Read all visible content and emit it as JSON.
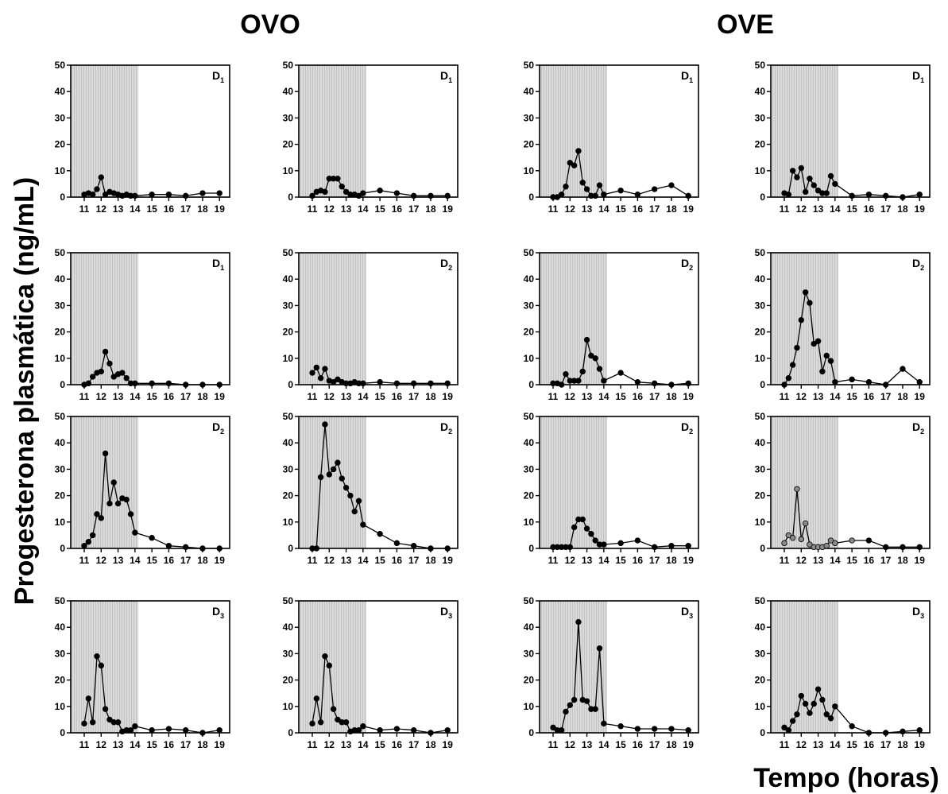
{
  "group_titles": [
    "OVO",
    "OVE"
  ],
  "ylabel": "Progesterona  plasmática (ng/mL)",
  "xlabel": "Tempo (horas)",
  "colors": {
    "shade": "#d4d4d4",
    "line": "#000000",
    "marker": "#000000",
    "marker_alt": "#8a8a8a"
  },
  "chart_data": [
    {
      "type": "line",
      "group": "OVO",
      "label_letter": "D",
      "label_sub": "1",
      "xlim": [
        10.2,
        19.6
      ],
      "ylim": [
        0,
        50
      ],
      "shaded_x": [
        10.2,
        14.2
      ],
      "xticks": [
        11,
        12,
        13,
        14,
        15,
        16,
        17,
        18,
        19
      ],
      "yticks": [
        0,
        10,
        20,
        30,
        40,
        50
      ],
      "x": [
        11,
        11.25,
        11.5,
        11.75,
        12,
        12.25,
        12.5,
        12.75,
        13,
        13.25,
        13.5,
        13.75,
        14,
        15,
        16,
        17,
        18,
        19
      ],
      "y": [
        1,
        1.5,
        1,
        3,
        7.5,
        1,
        2,
        1.5,
        1,
        0.5,
        1,
        0.5,
        0.5,
        1,
        1,
        0.5,
        1.5,
        1.5
      ]
    },
    {
      "type": "line",
      "group": "OVO",
      "label_letter": "D",
      "label_sub": "1",
      "xlim": [
        10.2,
        19.6
      ],
      "ylim": [
        0,
        50
      ],
      "shaded_x": [
        10.2,
        14.2
      ],
      "xticks": [
        11,
        12,
        13,
        14,
        15,
        16,
        17,
        18,
        19
      ],
      "yticks": [
        0,
        10,
        20,
        30,
        40,
        50
      ],
      "x": [
        11,
        11.25,
        11.5,
        11.75,
        12,
        12.25,
        12.5,
        12.75,
        13,
        13.25,
        13.5,
        13.75,
        14,
        15,
        16,
        17,
        18,
        19
      ],
      "y": [
        0.5,
        2,
        2.5,
        2,
        7,
        7,
        7,
        4,
        2,
        1,
        1,
        0.5,
        1.5,
        2.5,
        1.5,
        0.5,
        0.5,
        0.5
      ]
    },
    {
      "type": "line",
      "group": "OVE",
      "label_letter": "D",
      "label_sub": "1",
      "xlim": [
        10.2,
        19.6
      ],
      "ylim": [
        0,
        50
      ],
      "shaded_x": [
        10.2,
        14.2
      ],
      "xticks": [
        11,
        12,
        13,
        14,
        15,
        16,
        17,
        18,
        19
      ],
      "yticks": [
        0,
        10,
        20,
        30,
        40,
        50
      ],
      "x": [
        11,
        11.25,
        11.5,
        11.75,
        12,
        12.25,
        12.5,
        12.75,
        13,
        13.25,
        13.5,
        13.75,
        14,
        15,
        16,
        17,
        18,
        19
      ],
      "y": [
        0,
        0,
        1,
        4,
        13,
        12,
        17.5,
        5.5,
        3,
        0.5,
        0.5,
        4.5,
        1,
        2.5,
        1,
        3,
        4.5,
        0.5
      ]
    },
    {
      "type": "line",
      "group": "OVE",
      "label_letter": "D",
      "label_sub": "1",
      "xlim": [
        10.2,
        19.6
      ],
      "ylim": [
        0,
        50
      ],
      "shaded_x": [
        10.2,
        14.2
      ],
      "xticks": [
        11,
        12,
        13,
        14,
        15,
        16,
        17,
        18,
        19
      ],
      "yticks": [
        0,
        10,
        20,
        30,
        40,
        50
      ],
      "x": [
        11,
        11.25,
        11.5,
        11.75,
        12,
        12.25,
        12.5,
        12.75,
        13,
        13.25,
        13.5,
        13.75,
        14,
        15,
        16,
        17,
        18,
        19
      ],
      "y": [
        1.5,
        1,
        10,
        7.5,
        11,
        2,
        7,
        4.5,
        2.5,
        1.5,
        1.5,
        8,
        5,
        0.5,
        1,
        0.5,
        0,
        1
      ]
    },
    {
      "type": "line",
      "group": "OVO",
      "label_letter": "D",
      "label_sub": "1",
      "xlim": [
        10.2,
        19.6
      ],
      "ylim": [
        0,
        50
      ],
      "shaded_x": [
        10.2,
        14.2
      ],
      "xticks": [
        11,
        12,
        13,
        14,
        15,
        16,
        17,
        18,
        19
      ],
      "yticks": [
        0,
        10,
        20,
        30,
        40,
        50
      ],
      "x": [
        11,
        11.25,
        11.5,
        11.75,
        12,
        12.25,
        12.5,
        12.75,
        13,
        13.25,
        13.5,
        13.75,
        14,
        15,
        16,
        17,
        18,
        19
      ],
      "y": [
        0,
        0.5,
        3,
        4.5,
        5,
        12.5,
        8,
        3,
        4,
        4.5,
        2.5,
        0.5,
        0.5,
        0.5,
        0.5,
        0,
        0,
        0
      ]
    },
    {
      "type": "line",
      "group": "OVO",
      "label_letter": "D",
      "label_sub": "2",
      "xlim": [
        10.2,
        19.6
      ],
      "ylim": [
        0,
        50
      ],
      "shaded_x": [
        10.2,
        14.2
      ],
      "xticks": [
        11,
        12,
        13,
        14,
        15,
        16,
        17,
        18,
        19
      ],
      "yticks": [
        0,
        10,
        20,
        30,
        40,
        50
      ],
      "x": [
        11,
        11.25,
        11.5,
        11.75,
        12,
        12.25,
        12.5,
        12.75,
        13,
        13.25,
        13.5,
        13.75,
        14,
        15,
        16,
        17,
        18,
        19
      ],
      "y": [
        4.5,
        6.5,
        2.5,
        6,
        1.5,
        1,
        2,
        1,
        0.5,
        0.5,
        1,
        0.5,
        0.5,
        1,
        0.5,
        0.5,
        0.5,
        0.5
      ]
    },
    {
      "type": "line",
      "group": "OVE",
      "label_letter": "D",
      "label_sub": "2",
      "xlim": [
        10.2,
        19.6
      ],
      "ylim": [
        0,
        50
      ],
      "shaded_x": [
        10.2,
        14.2
      ],
      "xticks": [
        11,
        12,
        13,
        14,
        15,
        16,
        17,
        18,
        19
      ],
      "yticks": [
        0,
        10,
        20,
        30,
        40,
        50
      ],
      "x": [
        11,
        11.25,
        11.5,
        11.75,
        12,
        12.25,
        12.5,
        12.75,
        13,
        13.25,
        13.5,
        13.75,
        14,
        15,
        16,
        17,
        18,
        19
      ],
      "y": [
        0.5,
        0.5,
        0,
        4,
        1.5,
        1.5,
        1.5,
        5,
        17,
        11,
        10,
        6,
        1.5,
        4.5,
        1,
        0.5,
        0,
        0.5
      ]
    },
    {
      "type": "line",
      "group": "OVE",
      "label_letter": "D",
      "label_sub": "2",
      "xlim": [
        10.2,
        19.6
      ],
      "ylim": [
        0,
        50
      ],
      "shaded_x": [
        10.2,
        14.2
      ],
      "xticks": [
        11,
        12,
        13,
        14,
        15,
        16,
        17,
        18,
        19
      ],
      "yticks": [
        0,
        10,
        20,
        30,
        40,
        50
      ],
      "x": [
        11,
        11.25,
        11.5,
        11.75,
        12,
        12.25,
        12.5,
        12.75,
        13,
        13.25,
        13.5,
        13.75,
        14,
        15,
        16,
        17,
        18,
        19
      ],
      "y": [
        0,
        2.5,
        7.5,
        14,
        24.5,
        35,
        31,
        15.5,
        16.5,
        5,
        11,
        9,
        1,
        2,
        1,
        0,
        6,
        1
      ]
    },
    {
      "type": "line",
      "group": "OVO",
      "label_letter": "D",
      "label_sub": "2",
      "xlim": [
        10.2,
        19.6
      ],
      "ylim": [
        0,
        50
      ],
      "shaded_x": [
        10.2,
        14.2
      ],
      "xticks": [
        11,
        12,
        13,
        14,
        15,
        16,
        17,
        18,
        19
      ],
      "yticks": [
        0,
        10,
        20,
        30,
        40,
        50
      ],
      "x": [
        11,
        11.25,
        11.5,
        11.75,
        12,
        12.25,
        12.5,
        12.75,
        13,
        13.25,
        13.5,
        13.75,
        14,
        15,
        16,
        17,
        18,
        19
      ],
      "y": [
        1,
        2.5,
        5,
        13,
        11.5,
        36,
        17,
        25,
        17,
        19,
        18.5,
        13,
        6,
        4,
        1,
        0.5,
        0,
        0
      ]
    },
    {
      "type": "line",
      "group": "OVO",
      "label_letter": "D",
      "label_sub": "2",
      "xlim": [
        10.2,
        19.6
      ],
      "ylim": [
        0,
        50
      ],
      "shaded_x": [
        10.2,
        14.2
      ],
      "xticks": [
        11,
        12,
        13,
        14,
        15,
        16,
        17,
        18,
        19
      ],
      "yticks": [
        0,
        10,
        20,
        30,
        40,
        50
      ],
      "x": [
        11,
        11.25,
        11.5,
        11.75,
        12,
        12.25,
        12.5,
        12.75,
        13,
        13.25,
        13.5,
        13.75,
        14,
        15,
        16,
        17,
        18,
        19
      ],
      "y": [
        0,
        0,
        27,
        47,
        28,
        30,
        32.5,
        26.5,
        23,
        20,
        14,
        18,
        9,
        5.5,
        2,
        1,
        0,
        0
      ]
    },
    {
      "type": "line",
      "group": "OVE",
      "label_letter": "D",
      "label_sub": "2",
      "xlim": [
        10.2,
        19.6
      ],
      "ylim": [
        0,
        50
      ],
      "shaded_x": [
        10.2,
        14.2
      ],
      "xticks": [
        11,
        12,
        13,
        14,
        15,
        16,
        17,
        18,
        19
      ],
      "yticks": [
        0,
        10,
        20,
        30,
        40,
        50
      ],
      "x": [
        11,
        11.25,
        11.5,
        11.75,
        12,
        12.25,
        12.5,
        12.75,
        13,
        13.25,
        13.5,
        13.75,
        14,
        15,
        16,
        17,
        18,
        19
      ],
      "y": [
        0.5,
        0.5,
        0.5,
        0.5,
        0.5,
        8,
        11,
        11,
        7.5,
        5.5,
        3,
        1.5,
        1.5,
        2,
        3,
        0.5,
        1,
        1
      ]
    },
    {
      "type": "line",
      "group": "OVE",
      "label_letter": "D",
      "label_sub": "2",
      "xlim": [
        10.2,
        19.6
      ],
      "ylim": [
        0,
        50
      ],
      "shaded_x": [
        10.2,
        14.2
      ],
      "xticks": [
        11,
        12,
        13,
        14,
        15,
        16,
        17,
        18,
        19
      ],
      "yticks": [
        0,
        10,
        20,
        30,
        40,
        50
      ],
      "x": [
        11,
        11.25,
        11.5,
        11.75,
        12,
        12.25,
        12.5,
        12.75,
        13,
        13.25,
        13.5,
        13.75,
        14,
        15,
        16,
        17,
        18,
        19
      ],
      "y": [
        2,
        5,
        4,
        22.5,
        3.5,
        9.5,
        1.5,
        0.5,
        0.5,
        0.5,
        1,
        3,
        2,
        3,
        3,
        0.5,
        0.5,
        0.5
      ],
      "marker_tone": "alt",
      "alt_points": 14
    },
    {
      "type": "line",
      "group": "OVO",
      "label_letter": "D",
      "label_sub": "3",
      "xlim": [
        10.2,
        19.6
      ],
      "ylim": [
        0,
        50
      ],
      "shaded_x": [
        10.2,
        14.2
      ],
      "xticks": [
        11,
        12,
        13,
        14,
        15,
        16,
        17,
        18,
        19
      ],
      "yticks": [
        0,
        10,
        20,
        30,
        40,
        50
      ],
      "x": [
        11,
        11.25,
        11.5,
        11.75,
        12,
        12.25,
        12.5,
        12.75,
        13,
        13.25,
        13.5,
        13.75,
        14,
        15,
        16,
        17,
        18,
        19
      ],
      "y": [
        3.5,
        13,
        4,
        29,
        25.5,
        9,
        5,
        4,
        4,
        0.5,
        1,
        1,
        2.5,
        1,
        1.5,
        1,
        0,
        1
      ]
    },
    {
      "type": "line",
      "group": "OVO",
      "label_letter": "D",
      "label_sub": "3",
      "xlim": [
        10.2,
        19.6
      ],
      "ylim": [
        0,
        50
      ],
      "shaded_x": [
        10.2,
        14.2
      ],
      "xticks": [
        11,
        12,
        13,
        14,
        15,
        16,
        17,
        18,
        19
      ],
      "yticks": [
        0,
        10,
        20,
        30,
        40,
        50
      ],
      "x": [
        11,
        11.25,
        11.5,
        11.75,
        12,
        12.25,
        12.5,
        12.75,
        13,
        13.25,
        13.5,
        13.75,
        14,
        15,
        16,
        17,
        18,
        19
      ],
      "y": [
        3.5,
        13,
        4,
        29,
        25.5,
        9,
        5,
        4,
        4,
        0.5,
        1,
        1,
        2.5,
        1,
        1.5,
        1,
        0,
        1
      ]
    },
    {
      "type": "line",
      "group": "OVE",
      "label_letter": "D",
      "label_sub": "3",
      "xlim": [
        10.2,
        19.6
      ],
      "ylim": [
        0,
        50
      ],
      "shaded_x": [
        10.2,
        14.2
      ],
      "xticks": [
        11,
        12,
        13,
        14,
        15,
        16,
        17,
        18,
        19
      ],
      "yticks": [
        0,
        10,
        20,
        30,
        40,
        50
      ],
      "x": [
        11,
        11.25,
        11.5,
        11.75,
        12,
        12.25,
        12.5,
        12.75,
        13,
        13.25,
        13.5,
        13.75,
        14,
        15,
        16,
        17,
        18,
        19
      ],
      "y": [
        2,
        1,
        1,
        8,
        10.5,
        12.5,
        42,
        12.5,
        12,
        9,
        9,
        32,
        3.5,
        2.5,
        1.5,
        1.5,
        1.5,
        1
      ]
    },
    {
      "type": "line",
      "group": "OVE",
      "label_letter": "D",
      "label_sub": "3",
      "xlim": [
        10.2,
        19.6
      ],
      "ylim": [
        0,
        50
      ],
      "shaded_x": [
        10.2,
        14.2
      ],
      "xticks": [
        11,
        12,
        13,
        14,
        15,
        16,
        17,
        18,
        19
      ],
      "yticks": [
        0,
        10,
        20,
        30,
        40,
        50
      ],
      "x": [
        11,
        11.25,
        11.5,
        11.75,
        12,
        12.25,
        12.5,
        12.75,
        13,
        13.25,
        13.5,
        13.75,
        14,
        15,
        16,
        17,
        18,
        19
      ],
      "y": [
        2,
        1,
        4.5,
        7,
        14,
        11,
        7.5,
        11,
        16.5,
        12.5,
        7,
        5.5,
        10,
        2.5,
        0,
        0,
        0.5,
        1
      ]
    }
  ]
}
